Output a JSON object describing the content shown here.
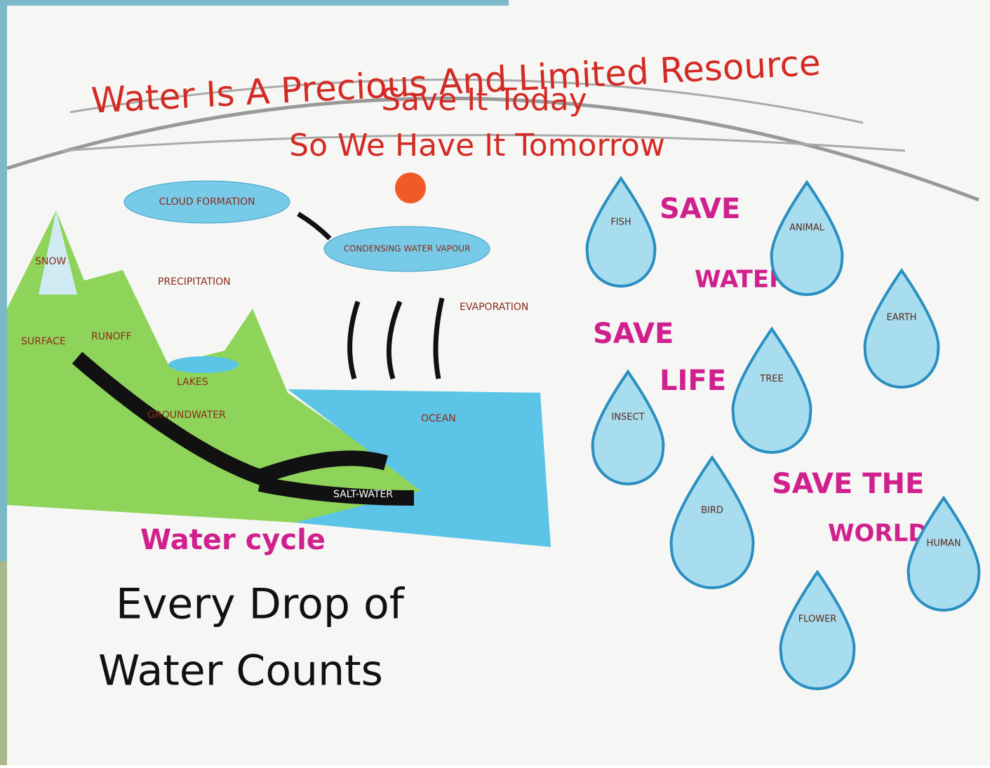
{
  "header": {
    "lines": [
      "Water Is A Precious And Limited Resource",
      "Save It Today",
      "So We Have It Tomorrow"
    ]
  },
  "cycle": {
    "title": "Water cycle",
    "labels": [
      "CLOUD FORMATION",
      "CONDENSING WATER VAPOUR",
      "EVAPORATION",
      "SNOW",
      "PRECIPITATION",
      "SURFACE",
      "RUNOFF",
      "LAKES",
      "GROUNDWATER",
      "OCEAN",
      "SALT-WATER"
    ]
  },
  "motto": [
    "Every Drop of",
    "Water Counts"
  ],
  "slogans": [
    [
      "SAVE",
      "WATER"
    ],
    [
      "SAVE",
      "LIFE"
    ],
    [
      "SAVE THE",
      "WORLD"
    ]
  ],
  "drops": [
    "FISH",
    "ANIMAL",
    "EARTH",
    "TREE",
    "INSECT",
    "BIRD",
    "HUMAN",
    "FLOWER"
  ]
}
